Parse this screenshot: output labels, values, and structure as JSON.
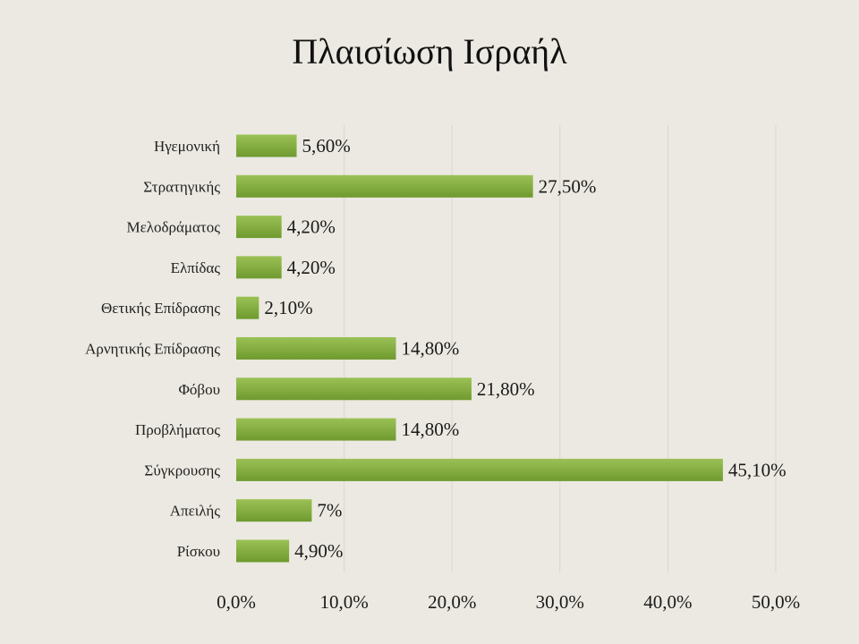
{
  "colors": {
    "background": "#ebe9e1",
    "bar_light": "#9bc155",
    "bar_dark": "#6f9a2f",
    "gridline": "#d9d7cf"
  },
  "chart_data": {
    "type": "bar",
    "orientation": "horizontal",
    "title": "Πλαισίωση Ισραήλ",
    "categories": [
      "Ηγεμονική",
      "Στρατηγικής",
      "Μελοδράματος",
      "Ελπίδας",
      "Θετικής Επίδρασης",
      "Αρνητικής Επίδρασης",
      "Φόβου",
      "Προβλήματος",
      "Σύγκρουσης",
      "Απειλής",
      "Ρίσκου"
    ],
    "values": [
      5.6,
      27.5,
      4.2,
      4.2,
      2.1,
      14.8,
      21.8,
      14.8,
      45.1,
      7.0,
      4.9
    ],
    "data_labels": [
      "5,60%",
      "27,50%",
      "4,20%",
      "4,20%",
      "2,10%",
      "14,80%",
      "21,80%",
      "14,80%",
      "45,10%",
      "7%",
      "4,90%"
    ],
    "xlim": [
      0,
      50
    ],
    "xticks": [
      0,
      10,
      20,
      30,
      40,
      50
    ],
    "xtick_labels": [
      "0,0%",
      "10,0%",
      "20,0%",
      "30,0%",
      "40,0%",
      "50,0%"
    ],
    "grid": true,
    "legend": "none"
  }
}
